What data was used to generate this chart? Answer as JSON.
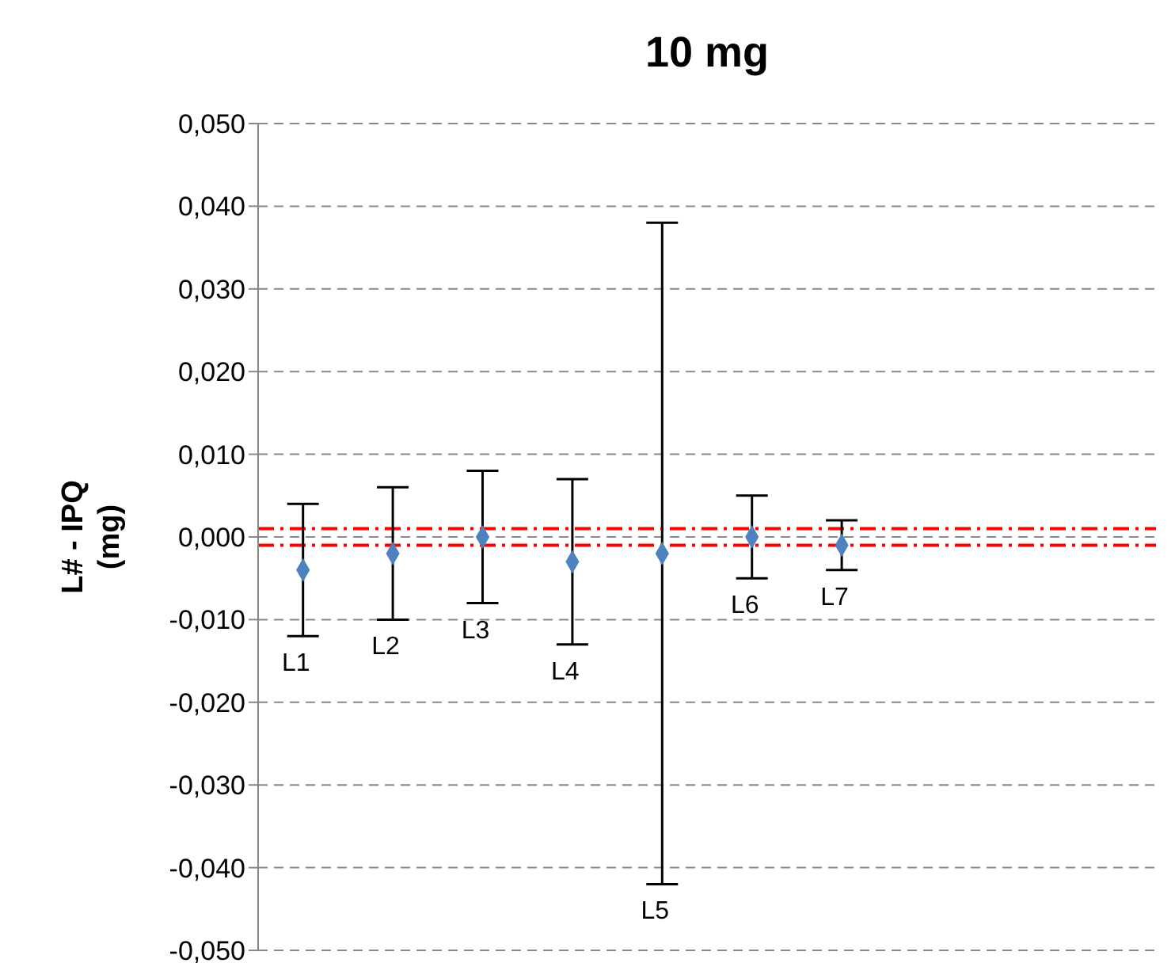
{
  "chart_data": {
    "type": "scatter",
    "title": "10 mg",
    "ylabel": "L# - IPQ\n(mg)",
    "categories": [
      "L1",
      "L2",
      "L3",
      "L4",
      "L5",
      "L6",
      "L7",
      null,
      null,
      null
    ],
    "values": [
      -0.004,
      -0.002,
      0.0,
      -0.003,
      -0.002,
      0.0,
      -0.001,
      null,
      null,
      null
    ],
    "errors": [
      0.008,
      0.008,
      0.008,
      0.01,
      0.04,
      0.005,
      0.003,
      null,
      null,
      null
    ],
    "color": "#4f81bd",
    "marker": "diamond",
    "ylim": [
      -0.05,
      0.05
    ],
    "yticks": [
      {
        "value": -0.05,
        "label": "-0,050"
      },
      {
        "value": -0.04,
        "label": "-0,040"
      },
      {
        "value": -0.03,
        "label": "-0,030"
      },
      {
        "value": -0.02,
        "label": "-0,020"
      },
      {
        "value": -0.01,
        "label": "-0,010"
      },
      {
        "value": 0,
        "label": "0,000"
      },
      {
        "value": 0.01,
        "label": "0,010"
      },
      {
        "value": 0.02,
        "label": "0,020"
      },
      {
        "value": 0.03,
        "label": "0,030"
      },
      {
        "value": 0.04,
        "label": "0,040"
      },
      {
        "value": 0.05,
        "label": "0,050"
      }
    ],
    "ref_lines": [
      {
        "axis": "y",
        "value": 0.001,
        "color": "#ff0000",
        "line_style": "dashed"
      },
      {
        "axis": "y",
        "value": -0.001,
        "color": "#ff0000",
        "line_style": "dashed"
      }
    ],
    "grid": "y",
    "legend": false,
    "tick_labels": "y"
  }
}
